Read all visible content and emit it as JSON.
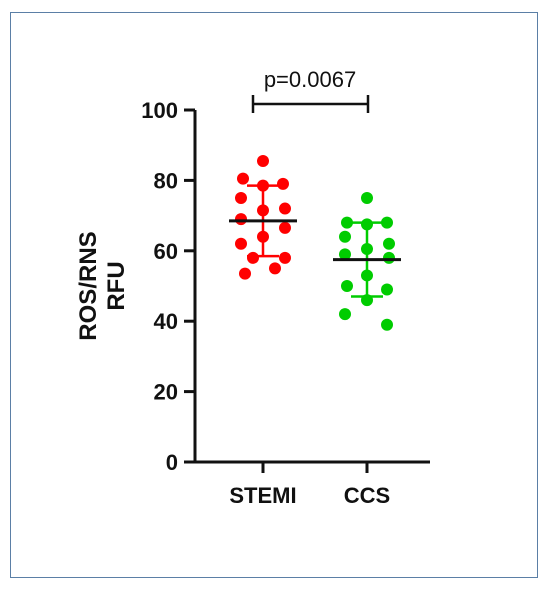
{
  "chart_data": {
    "type": "scatter",
    "title": "",
    "xlabel": "",
    "ylabel": [
      "ROS/RNS",
      "RFU"
    ],
    "ylim": [
      0,
      100
    ],
    "yticks": [
      0,
      20,
      40,
      60,
      80,
      100
    ],
    "categories": [
      "STEMI",
      "CCS"
    ],
    "annotation": "p=0.0067",
    "grid": false,
    "series": [
      {
        "category": "STEMI",
        "color": "#ff0000",
        "mean": 68.5,
        "sd_low": 58.5,
        "sd_high": 78.5,
        "points": [
          85.5,
          80.5,
          79,
          78.5,
          75,
          72,
          71.5,
          69,
          66.5,
          64,
          62,
          58,
          58,
          55,
          53.5
        ]
      },
      {
        "category": "CCS",
        "color": "#00cc00",
        "mean": 57.5,
        "sd_low": 47,
        "sd_high": 68,
        "points": [
          75,
          68,
          68,
          67.5,
          64,
          62,
          60.5,
          59,
          58,
          53,
          50,
          49,
          46,
          42,
          39
        ]
      }
    ]
  }
}
